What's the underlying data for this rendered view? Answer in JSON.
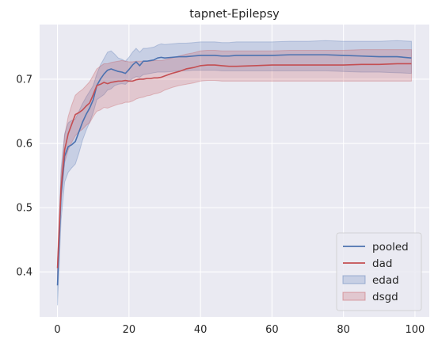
{
  "chart_data": {
    "type": "line",
    "title": "tapnet-Epilepsy",
    "xlabel": "",
    "ylabel": "",
    "xlim": [
      -5,
      104
    ],
    "ylim": [
      0.33,
      0.785
    ],
    "x_ticks": [
      0,
      20,
      40,
      60,
      80,
      100
    ],
    "y_ticks": [
      0.4,
      0.5,
      0.6,
      0.7
    ],
    "grid": true,
    "legend_position": "lower-right",
    "legend": [
      "pooled",
      "dad",
      "edad",
      "dsgd"
    ],
    "series": [
      {
        "name": "pooled",
        "color": "#4c72b0",
        "x": [
          0,
          1,
          2,
          3,
          4,
          5,
          6,
          7,
          8,
          9,
          10,
          11,
          12,
          13,
          14,
          15,
          16,
          17,
          18,
          19,
          20,
          21,
          22,
          23,
          24,
          25,
          26,
          27,
          28,
          29,
          30,
          32,
          34,
          36,
          38,
          40,
          42,
          44,
          46,
          48,
          50,
          55,
          60,
          65,
          70,
          75,
          80,
          85,
          90,
          95,
          99
        ],
        "y": [
          0.379,
          0.52,
          0.58,
          0.595,
          0.598,
          0.603,
          0.618,
          0.633,
          0.645,
          0.655,
          0.668,
          0.69,
          0.7,
          0.708,
          0.714,
          0.716,
          0.714,
          0.712,
          0.711,
          0.709,
          0.715,
          0.722,
          0.727,
          0.721,
          0.728,
          0.728,
          0.729,
          0.73,
          0.733,
          0.734,
          0.733,
          0.734,
          0.735,
          0.735,
          0.736,
          0.737,
          0.737,
          0.737,
          0.736,
          0.736,
          0.737,
          0.737,
          0.737,
          0.738,
          0.738,
          0.738,
          0.737,
          0.736,
          0.735,
          0.735,
          0.733
        ]
      },
      {
        "name": "dad",
        "color": "#c44e52",
        "x": [
          0,
          1,
          2,
          3,
          4,
          5,
          6,
          7,
          8,
          9,
          10,
          11,
          12,
          13,
          14,
          15,
          16,
          17,
          18,
          19,
          20,
          21,
          22,
          23,
          24,
          25,
          26,
          27,
          28,
          29,
          30,
          32,
          34,
          36,
          38,
          40,
          42,
          44,
          46,
          48,
          50,
          55,
          60,
          65,
          70,
          75,
          80,
          85,
          90,
          95,
          99
        ],
        "y": [
          0.406,
          0.53,
          0.59,
          0.615,
          0.63,
          0.645,
          0.648,
          0.652,
          0.658,
          0.663,
          0.676,
          0.69,
          0.692,
          0.695,
          0.693,
          0.695,
          0.696,
          0.697,
          0.697,
          0.698,
          0.697,
          0.697,
          0.699,
          0.7,
          0.7,
          0.701,
          0.701,
          0.702,
          0.702,
          0.703,
          0.705,
          0.709,
          0.712,
          0.716,
          0.718,
          0.721,
          0.722,
          0.722,
          0.721,
          0.72,
          0.72,
          0.721,
          0.722,
          0.722,
          0.722,
          0.722,
          0.722,
          0.723,
          0.723,
          0.724,
          0.724
        ]
      }
    ],
    "bands": [
      {
        "name": "edad",
        "color": "#4c72b0",
        "x": [
          0,
          1,
          2,
          3,
          4,
          5,
          6,
          7,
          8,
          9,
          10,
          11,
          12,
          13,
          14,
          15,
          16,
          17,
          18,
          19,
          20,
          21,
          22,
          23,
          24,
          25,
          26,
          27,
          28,
          29,
          30,
          32,
          34,
          36,
          38,
          40,
          42,
          44,
          46,
          48,
          50,
          55,
          60,
          65,
          70,
          75,
          80,
          85,
          90,
          95,
          99
        ],
        "low": [
          0.348,
          0.48,
          0.54,
          0.555,
          0.562,
          0.568,
          0.585,
          0.605,
          0.62,
          0.633,
          0.648,
          0.668,
          0.672,
          0.676,
          0.683,
          0.685,
          0.69,
          0.692,
          0.693,
          0.692,
          0.697,
          0.701,
          0.704,
          0.703,
          0.707,
          0.708,
          0.709,
          0.71,
          0.711,
          0.711,
          0.711,
          0.712,
          0.713,
          0.713,
          0.714,
          0.714,
          0.714,
          0.714,
          0.713,
          0.713,
          0.713,
          0.713,
          0.713,
          0.713,
          0.713,
          0.713,
          0.712,
          0.711,
          0.711,
          0.71,
          0.709
        ],
        "high": [
          0.41,
          0.56,
          0.615,
          0.632,
          0.636,
          0.638,
          0.65,
          0.662,
          0.672,
          0.681,
          0.69,
          0.708,
          0.722,
          0.732,
          0.742,
          0.744,
          0.739,
          0.733,
          0.731,
          0.728,
          0.734,
          0.742,
          0.748,
          0.742,
          0.748,
          0.748,
          0.749,
          0.75,
          0.753,
          0.755,
          0.754,
          0.755,
          0.756,
          0.756,
          0.757,
          0.758,
          0.758,
          0.758,
          0.757,
          0.757,
          0.758,
          0.758,
          0.758,
          0.759,
          0.759,
          0.76,
          0.759,
          0.759,
          0.759,
          0.76,
          0.759
        ]
      },
      {
        "name": "dsgd",
        "color": "#c44e52",
        "x": [
          0,
          1,
          2,
          3,
          4,
          5,
          6,
          7,
          8,
          9,
          10,
          11,
          12,
          13,
          14,
          15,
          16,
          17,
          18,
          19,
          20,
          21,
          22,
          23,
          24,
          25,
          26,
          27,
          28,
          29,
          30,
          32,
          34,
          36,
          38,
          40,
          42,
          44,
          46,
          48,
          50,
          55,
          60,
          65,
          70,
          75,
          80,
          85,
          90,
          95,
          99
        ],
        "low": [
          0.39,
          0.51,
          0.57,
          0.59,
          0.602,
          0.612,
          0.618,
          0.622,
          0.628,
          0.632,
          0.642,
          0.65,
          0.652,
          0.656,
          0.655,
          0.657,
          0.659,
          0.661,
          0.662,
          0.664,
          0.664,
          0.666,
          0.669,
          0.671,
          0.672,
          0.674,
          0.675,
          0.677,
          0.678,
          0.68,
          0.683,
          0.687,
          0.69,
          0.692,
          0.694,
          0.697,
          0.698,
          0.698,
          0.697,
          0.697,
          0.697,
          0.697,
          0.697,
          0.697,
          0.697,
          0.697,
          0.697,
          0.697,
          0.697,
          0.697,
          0.697
        ],
        "high": [
          0.422,
          0.55,
          0.612,
          0.642,
          0.66,
          0.675,
          0.68,
          0.684,
          0.69,
          0.696,
          0.706,
          0.716,
          0.72,
          0.724,
          0.724,
          0.726,
          0.727,
          0.728,
          0.729,
          0.728,
          0.727,
          0.727,
          0.728,
          0.728,
          0.728,
          0.728,
          0.728,
          0.729,
          0.729,
          0.729,
          0.73,
          0.733,
          0.736,
          0.739,
          0.741,
          0.744,
          0.745,
          0.745,
          0.744,
          0.744,
          0.744,
          0.744,
          0.744,
          0.745,
          0.745,
          0.745,
          0.745,
          0.746,
          0.746,
          0.746,
          0.746
        ]
      }
    ]
  }
}
